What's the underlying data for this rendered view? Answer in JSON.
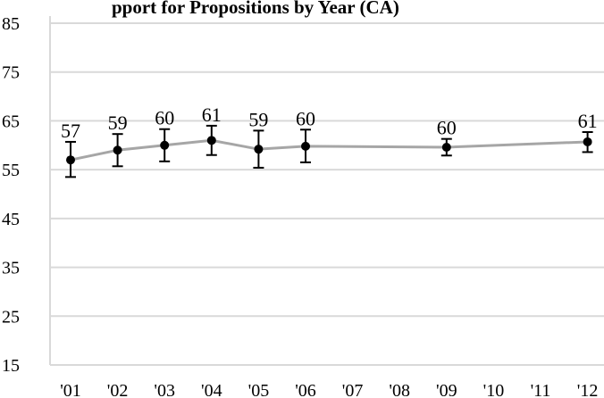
{
  "chart_data": {
    "type": "line",
    "title": "pport for Propositions by Year (CA)",
    "categories": [
      "'01",
      "'02",
      "'03",
      "'04",
      "'05",
      "'06",
      "'07",
      "'08",
      "'09",
      "'10",
      "'11",
      "'12"
    ],
    "series": [
      {
        "values": [
          57,
          59,
          60,
          61,
          59,
          60,
          null,
          null,
          60,
          null,
          null,
          61
        ],
        "plotted": [
          57.0,
          59.0,
          60.0,
          61.0,
          59.2,
          59.8,
          null,
          null,
          59.6,
          null,
          null,
          60.7
        ],
        "error_low": [
          53.5,
          55.7,
          56.7,
          58.0,
          55.4,
          56.5,
          null,
          null,
          57.9,
          null,
          null,
          58.6
        ],
        "error_high": [
          60.7,
          62.3,
          63.3,
          64.0,
          63.0,
          63.2,
          null,
          null,
          61.3,
          null,
          null,
          62.7
        ],
        "color": "#a6a6a6"
      }
    ],
    "ylim": [
      15,
      85
    ],
    "yticks": [
      15,
      25,
      35,
      45,
      55,
      65,
      75,
      85
    ],
    "grid": true,
    "legend": "none"
  }
}
